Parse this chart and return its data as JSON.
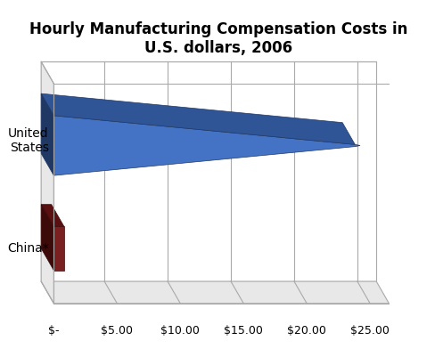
{
  "title_line1": "Hourly Manufacturing Compensation Costs in",
  "title_line2": "U.S. dollars, 2006",
  "title_fontsize": 13,
  "us_value": 23.82,
  "china_value": 0.81,
  "us_color_face": "#4472C4",
  "us_color_top": "#2F5597",
  "us_color_side": "#1F3864",
  "china_color_face": "#7B2020",
  "china_color_top": "#5A1010",
  "china_color_side": "#3D0A0A",
  "bg_color": "#FFFFFF",
  "grid_color": "#AAAAAA",
  "wall_color": "#FFFFFF",
  "left_wall_color": "#E8E8E8",
  "floor_color": "#E8E8E8",
  "xticks": [
    0,
    5,
    10,
    15,
    20,
    25
  ],
  "xticklabels": [
    "$-",
    "$5.00",
    "$10.00",
    "$15.00",
    "$20.00",
    "$25.00"
  ]
}
